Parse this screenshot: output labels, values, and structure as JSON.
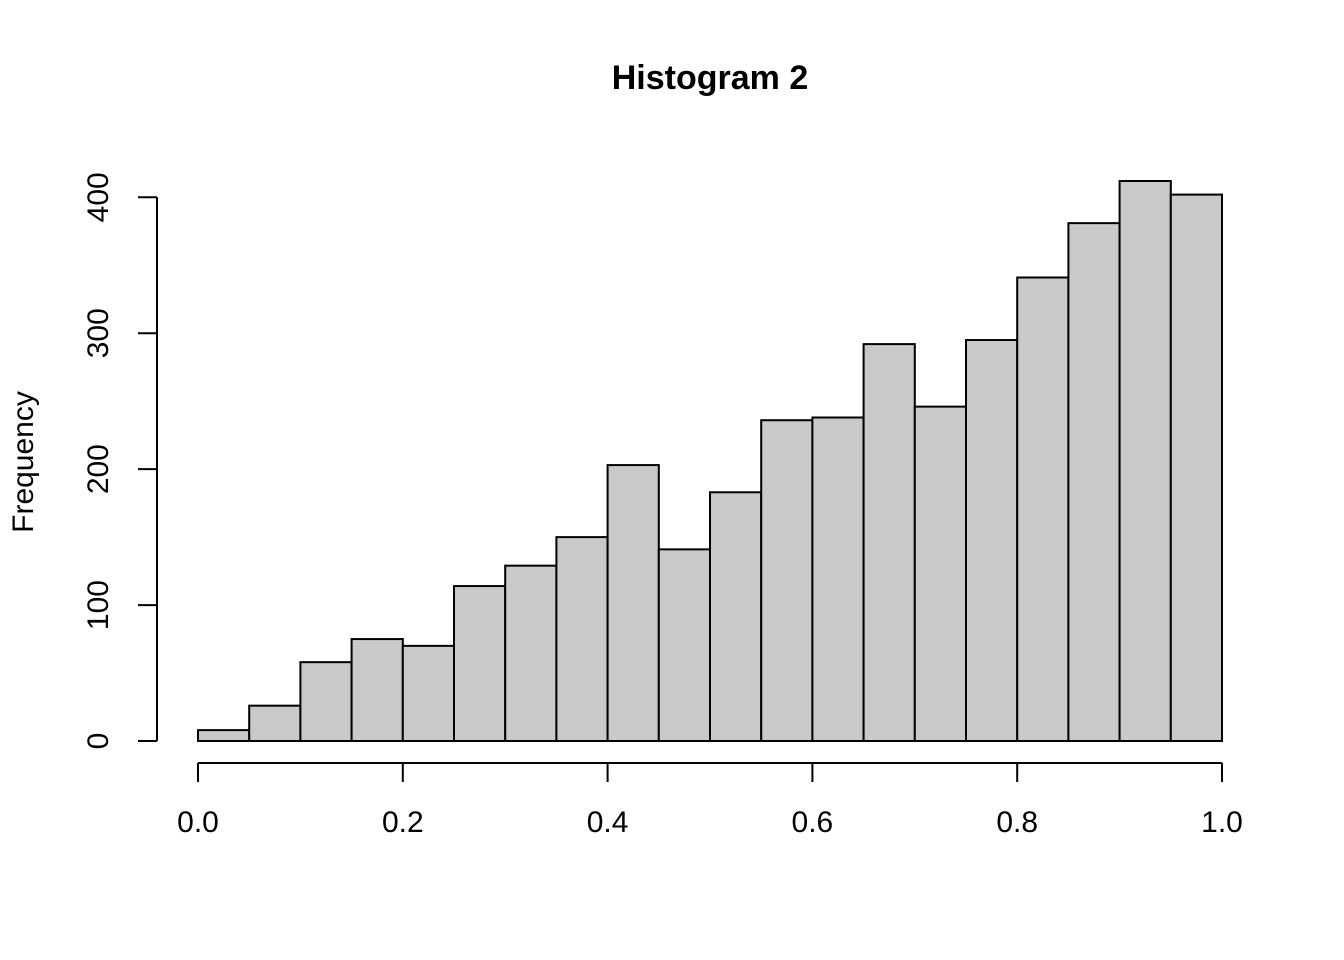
{
  "chart_data": {
    "type": "histogram",
    "title": "Histogram 2",
    "ylabel": "Frequency",
    "bins": [
      0,
      0.05,
      0.1,
      0.15,
      0.2,
      0.25,
      0.3,
      0.35,
      0.4,
      0.45,
      0.5,
      0.55,
      0.6,
      0.65,
      0.7,
      0.75,
      0.8,
      0.85,
      0.9,
      0.95,
      1
    ],
    "counts": [
      8,
      26,
      58,
      75,
      70,
      114,
      129,
      150,
      203,
      141,
      183,
      236,
      238,
      292,
      246,
      295,
      341,
      381,
      412,
      402
    ],
    "color": "#c9c9c9",
    "xlim": [
      0,
      1
    ],
    "xticks": [
      {
        "value": 0,
        "label": "0.0"
      },
      0.2,
      0.4,
      0.6,
      0.8,
      {
        "value": 1,
        "label": "1.0"
      }
    ],
    "ylim": [
      0,
      412
    ],
    "yticks": [
      0,
      100,
      200,
      300,
      400
    ]
  }
}
